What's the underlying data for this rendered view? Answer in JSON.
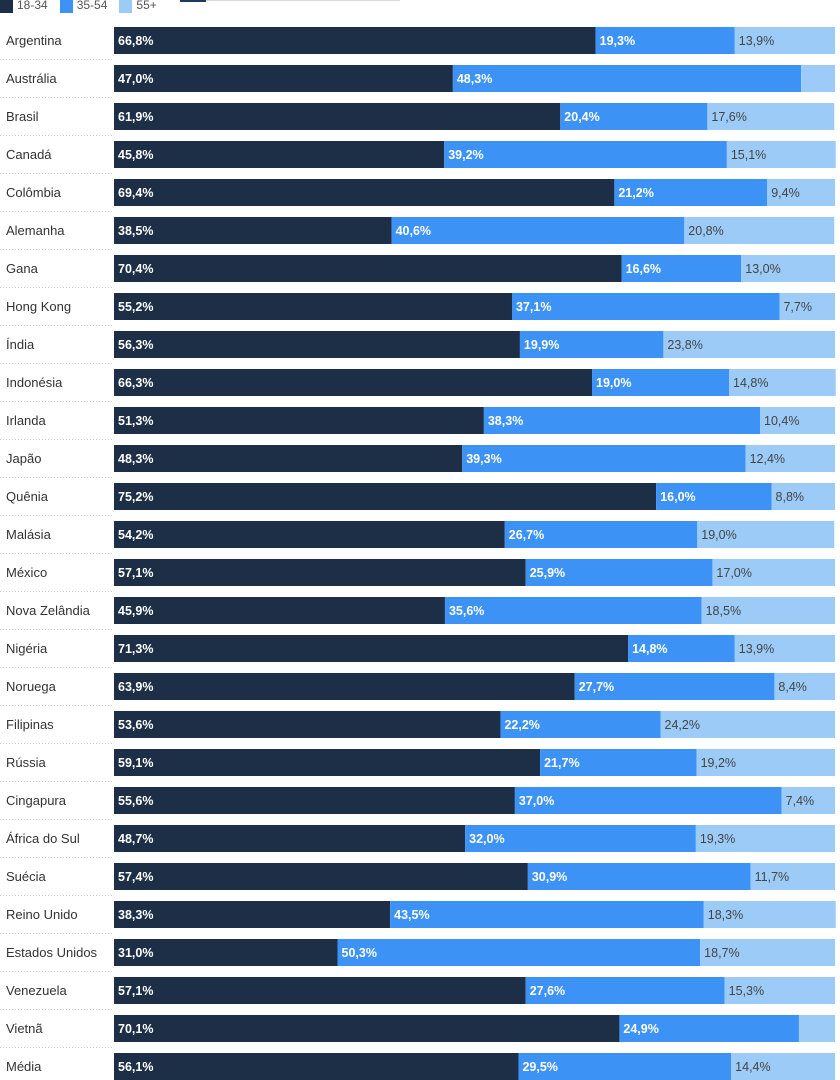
{
  "chart_data": {
    "type": "bar",
    "orientation": "horizontal",
    "stacked": true,
    "categories": [
      "Argentina",
      "Austrália",
      "Brasil",
      "Canadá",
      "Colômbia",
      "Alemanha",
      "Gana",
      "Hong Kong",
      "Índia",
      "Indonésia",
      "Irlanda",
      "Japão",
      "Quênia",
      "Malásia",
      "México",
      "Nova Zelândia",
      "Nigéria",
      "Noruega",
      "Filipinas",
      "Rússia",
      "Cingapura",
      "África do Sul",
      "Suécia",
      "Reino Unido",
      "Estados Unidos",
      "Venezuela",
      "Vietnã",
      "Média"
    ],
    "series": [
      {
        "name": "18-34",
        "color": "#1c2f46",
        "label_color": "#ffffff",
        "values": [
          66.8,
          47.0,
          61.9,
          45.8,
          69.4,
          38.5,
          70.4,
          55.2,
          56.3,
          66.3,
          51.3,
          48.3,
          75.2,
          54.2,
          57.1,
          45.9,
          71.3,
          63.9,
          53.6,
          59.1,
          55.6,
          48.7,
          57.4,
          38.3,
          31.0,
          57.1,
          70.1,
          56.1
        ],
        "labels": [
          "66,8%",
          "47,0%",
          "61,9%",
          "45,8%",
          "69,4%",
          "38,5%",
          "70,4%",
          "55,2%",
          "56,3%",
          "66,3%",
          "51,3%",
          "48,3%",
          "75,2%",
          "54,2%",
          "57,1%",
          "45,9%",
          "71,3%",
          "63,9%",
          "53,6%",
          "59,1%",
          "55,6%",
          "48,7%",
          "57,4%",
          "38,3%",
          "31,0%",
          "57,1%",
          "70,1%",
          "56,1%"
        ]
      },
      {
        "name": "35-54",
        "color": "#3d93f5",
        "label_color": "#ffffff",
        "values": [
          19.3,
          48.3,
          20.4,
          39.2,
          21.2,
          40.6,
          16.6,
          37.1,
          19.9,
          19.0,
          38.3,
          39.3,
          16.0,
          26.7,
          25.9,
          35.6,
          14.8,
          27.7,
          22.2,
          21.7,
          37.0,
          32.0,
          30.9,
          43.5,
          50.3,
          27.6,
          24.9,
          29.5
        ],
        "labels": [
          "19,3%",
          "48,3%",
          "20,4%",
          "39,2%",
          "21,2%",
          "40,6%",
          "16,6%",
          "37,1%",
          "19,9%",
          "19,0%",
          "38,3%",
          "39,3%",
          "16,0%",
          "26,7%",
          "25,9%",
          "35,6%",
          "14,8%",
          "27,7%",
          "22,2%",
          "21,7%",
          "37,0%",
          "32,0%",
          "30,9%",
          "43,5%",
          "50,3%",
          "27,6%",
          "24,9%",
          "29,5%"
        ]
      },
      {
        "name": "55+",
        "color": "#9ccbf8",
        "label_color": "#444444",
        "values": [
          13.9,
          4.7,
          17.6,
          15.1,
          9.4,
          20.8,
          13.0,
          7.7,
          23.8,
          14.8,
          10.4,
          12.4,
          8.8,
          19.0,
          17.0,
          18.5,
          13.9,
          8.4,
          24.2,
          19.2,
          7.4,
          19.3,
          11.7,
          18.3,
          18.7,
          15.3,
          5.0,
          14.4
        ],
        "labels": [
          "13,9%",
          "",
          "17,6%",
          "15,1%",
          "9,4%",
          "20,8%",
          "13,0%",
          "7,7%",
          "23,8%",
          "14,8%",
          "10,4%",
          "12,4%",
          "8,8%",
          "19,0%",
          "17,0%",
          "18,5%",
          "13,9%",
          "8,4%",
          "24,2%",
          "19,2%",
          "7,4%",
          "19,3%",
          "11,7%",
          "18,3%",
          "18,7%",
          "15,3%",
          "",
          "14,4%"
        ]
      }
    ],
    "xlim": [
      0,
      100
    ],
    "legend": "top-left",
    "grid": false
  }
}
